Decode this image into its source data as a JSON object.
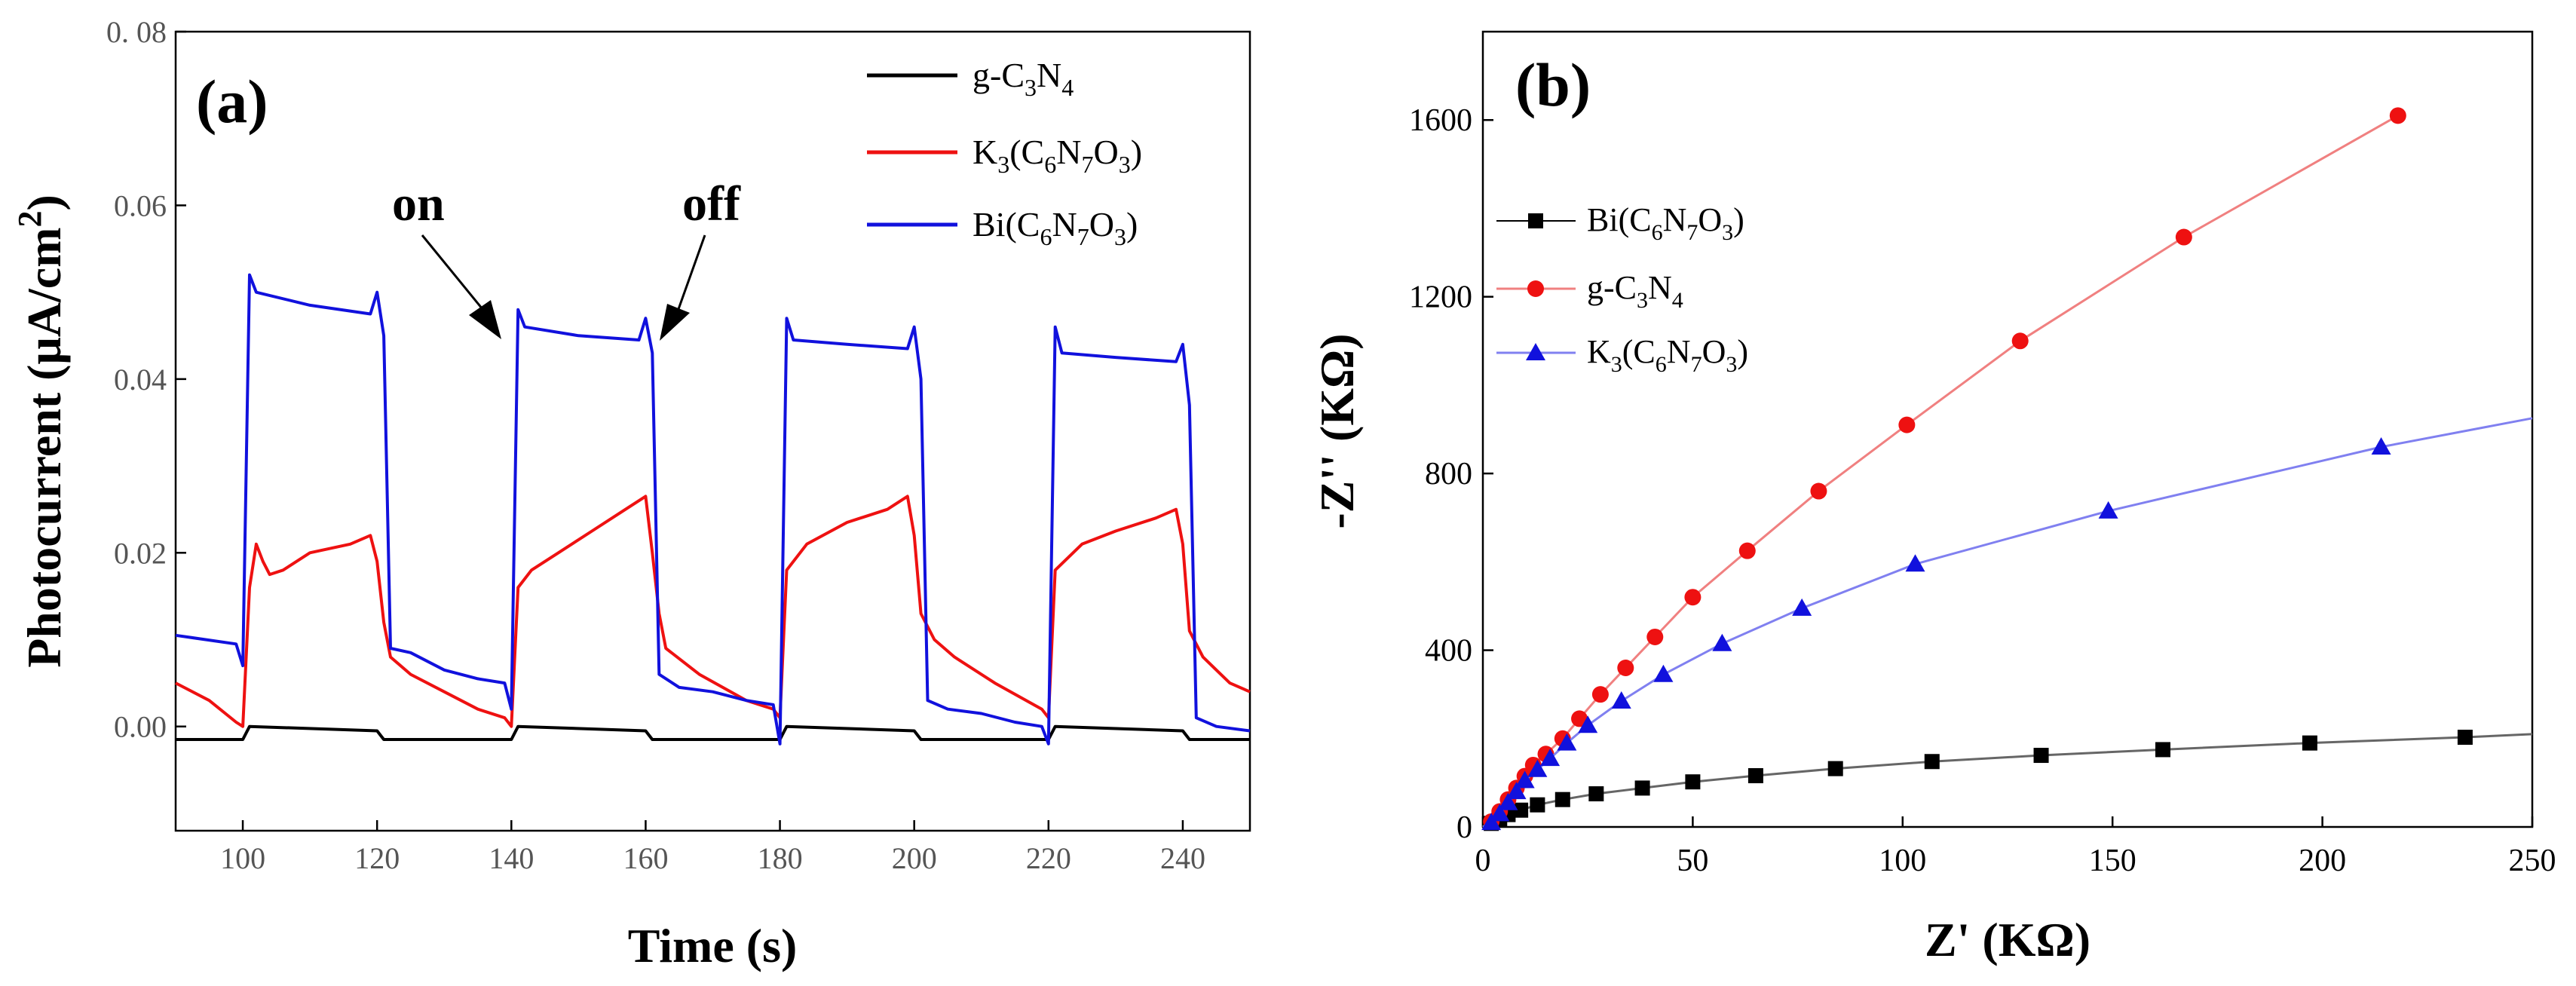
{
  "chart_data": [
    {
      "type": "line",
      "panel_label": "(a)",
      "xlabel": "Time (s)",
      "ylabel": "Photocurrent (μA/cm²)",
      "ylabel_main": "Photocurrent (μA/cm",
      "ylabel_sup": "2",
      "ylabel_end": ")",
      "xlim": [
        90,
        250
      ],
      "ylim": [
        -0.012,
        0.08
      ],
      "xticks": [
        100,
        120,
        140,
        160,
        180,
        200,
        220,
        240
      ],
      "xtick_labels": [
        "100",
        "120",
        "140",
        "160",
        "180",
        "200",
        "220",
        "240"
      ],
      "yticks": [
        0.0,
        0.02,
        0.04,
        0.06,
        0.08
      ],
      "ytick_labels": [
        "0.00",
        "0.02",
        "0.04",
        "0.06",
        "0. 08"
      ],
      "legend_position": "top-right",
      "annotations": [
        {
          "text": "on",
          "x": 140,
          "y": 0.0458
        },
        {
          "text": "off",
          "x": 160,
          "y": 0.0458
        }
      ],
      "series": [
        {
          "name": "g-C3N4",
          "label_parts": [
            "g-C",
            "3",
            "N",
            "4"
          ],
          "color": "#000000",
          "points": [
            [
              90,
              -0.0015
            ],
            [
              100,
              -0.0015
            ],
            [
              101,
              0.0
            ],
            [
              120,
              -0.0005
            ],
            [
              121,
              -0.0015
            ],
            [
              140,
              -0.0015
            ],
            [
              141,
              0.0
            ],
            [
              160,
              -0.0005
            ],
            [
              161,
              -0.0015
            ],
            [
              180,
              -0.0015
            ],
            [
              181,
              0.0
            ],
            [
              200,
              -0.0005
            ],
            [
              201,
              -0.0015
            ],
            [
              220,
              -0.0015
            ],
            [
              221,
              0.0
            ],
            [
              240,
              -0.0005
            ],
            [
              241,
              -0.0015
            ],
            [
              250,
              -0.0015
            ]
          ]
        },
        {
          "name": "K3(C6N7O3)",
          "label_parts": [
            "K",
            "3",
            "(C",
            "6",
            "N",
            "7",
            "O",
            "3",
            ")"
          ],
          "color": "#ee1111",
          "points": [
            [
              90,
              0.005
            ],
            [
              95,
              0.003
            ],
            [
              99,
              0.0005
            ],
            [
              100,
              0.0
            ],
            [
              101,
              0.016
            ],
            [
              102,
              0.021
            ],
            [
              103,
              0.019
            ],
            [
              104,
              0.0175
            ],
            [
              106,
              0.018
            ],
            [
              110,
              0.02
            ],
            [
              116,
              0.021
            ],
            [
              119,
              0.022
            ],
            [
              120,
              0.019
            ],
            [
              121,
              0.012
            ],
            [
              122,
              0.008
            ],
            [
              125,
              0.006
            ],
            [
              130,
              0.004
            ],
            [
              135,
              0.002
            ],
            [
              139,
              0.001
            ],
            [
              140,
              0.0
            ],
            [
              141,
              0.016
            ],
            [
              143,
              0.018
            ],
            [
              147,
              0.02
            ],
            [
              152,
              0.0225
            ],
            [
              157,
              0.025
            ],
            [
              160,
              0.0265
            ],
            [
              161,
              0.02
            ],
            [
              162,
              0.013
            ],
            [
              163,
              0.009
            ],
            [
              168,
              0.006
            ],
            [
              175,
              0.003
            ],
            [
              179,
              0.002
            ],
            [
              180,
              0.001
            ],
            [
              181,
              0.018
            ],
            [
              184,
              0.021
            ],
            [
              190,
              0.0235
            ],
            [
              196,
              0.025
            ],
            [
              199,
              0.0265
            ],
            [
              200,
              0.022
            ],
            [
              201,
              0.013
            ],
            [
              203,
              0.01
            ],
            [
              206,
              0.008
            ],
            [
              212,
              0.005
            ],
            [
              219,
              0.002
            ],
            [
              220,
              0.001
            ],
            [
              221,
              0.018
            ],
            [
              225,
              0.021
            ],
            [
              230,
              0.0225
            ],
            [
              236,
              0.024
            ],
            [
              239,
              0.025
            ],
            [
              240,
              0.021
            ],
            [
              241,
              0.011
            ],
            [
              243,
              0.008
            ],
            [
              247,
              0.005
            ],
            [
              250,
              0.004
            ]
          ]
        },
        {
          "name": "Bi(C6N7O3)",
          "label_parts": [
            "Bi(C",
            "6",
            "N",
            "7",
            "O",
            "3",
            ")"
          ],
          "color": "#1111dd",
          "points": [
            [
              90,
              0.0105
            ],
            [
              99,
              0.0095
            ],
            [
              100,
              0.007
            ],
            [
              101,
              0.052
            ],
            [
              102,
              0.05
            ],
            [
              110,
              0.0485
            ],
            [
              119,
              0.0475
            ],
            [
              120,
              0.05
            ],
            [
              121,
              0.045
            ],
            [
              122,
              0.009
            ],
            [
              125,
              0.0085
            ],
            [
              130,
              0.0065
            ],
            [
              135,
              0.0055
            ],
            [
              139,
              0.005
            ],
            [
              140,
              0.002
            ],
            [
              141,
              0.048
            ],
            [
              142,
              0.046
            ],
            [
              150,
              0.045
            ],
            [
              159,
              0.0445
            ],
            [
              160,
              0.047
            ],
            [
              161,
              0.043
            ],
            [
              162,
              0.006
            ],
            [
              165,
              0.0045
            ],
            [
              170,
              0.004
            ],
            [
              175,
              0.003
            ],
            [
              179,
              0.0025
            ],
            [
              180,
              -0.002
            ],
            [
              181,
              0.047
            ],
            [
              182,
              0.0445
            ],
            [
              190,
              0.044
            ],
            [
              199,
              0.0435
            ],
            [
              200,
              0.046
            ],
            [
              201,
              0.04
            ],
            [
              202,
              0.003
            ],
            [
              205,
              0.002
            ],
            [
              210,
              0.0015
            ],
            [
              215,
              0.0005
            ],
            [
              219,
              0.0
            ],
            [
              220,
              -0.002
            ],
            [
              221,
              0.046
            ],
            [
              222,
              0.043
            ],
            [
              230,
              0.0425
            ],
            [
              239,
              0.042
            ],
            [
              240,
              0.044
            ],
            [
              241,
              0.037
            ],
            [
              242,
              0.001
            ],
            [
              245,
              0.0
            ],
            [
              250,
              -0.0005
            ]
          ]
        }
      ]
    },
    {
      "type": "scatter",
      "panel_label": "(b)",
      "xlabel": "Z' (KΩ)",
      "ylabel": "-Z'' (KΩ)",
      "xlim": [
        0,
        250
      ],
      "ylim": [
        0,
        1800
      ],
      "xticks": [
        0,
        50,
        100,
        150,
        200,
        250
      ],
      "xtick_labels": [
        "0",
        "50",
        "100",
        "150",
        "200",
        "250"
      ],
      "yticks": [
        0,
        400,
        800,
        1200,
        1600
      ],
      "ytick_labels": [
        "0",
        "400",
        "800",
        "1200",
        "1600"
      ],
      "legend_position": "upper-left",
      "series": [
        {
          "name": "Bi(C6N7O3)",
          "label_parts": [
            "Bi(C",
            "6",
            "N",
            "7",
            "O",
            "3",
            ")"
          ],
          "color": "#000000",
          "marker": "square",
          "points": [
            [
              2,
              8
            ],
            [
              4,
              18
            ],
            [
              6,
              28
            ],
            [
              9,
              38
            ],
            [
              13,
              50
            ],
            [
              19,
              62
            ],
            [
              27,
              75
            ],
            [
              38,
              88
            ],
            [
              50,
              102
            ],
            [
              65,
              116
            ],
            [
              84,
              132
            ],
            [
              107,
              148
            ],
            [
              133,
              162
            ],
            [
              162,
              175
            ],
            [
              197,
              190
            ],
            [
              234,
              203
            ]
          ],
          "line_end": [
            250,
            210
          ]
        },
        {
          "name": "g-C3N4",
          "label_parts": [
            "g-C",
            "3",
            "N",
            "4"
          ],
          "color": "#ee1111",
          "marker": "circle",
          "points": [
            [
              2,
              12
            ],
            [
              4,
              35
            ],
            [
              6,
              62
            ],
            [
              8,
              88
            ],
            [
              10,
              115
            ],
            [
              12,
              140
            ],
            [
              15,
              165
            ],
            [
              19,
              200
            ],
            [
              23,
              245
            ],
            [
              28,
              300
            ],
            [
              34,
              360
            ],
            [
              41,
              430
            ],
            [
              50,
              520
            ],
            [
              63,
              625
            ],
            [
              80,
              760
            ],
            [
              101,
              910
            ],
            [
              128,
              1100
            ],
            [
              167,
              1335
            ],
            [
              218,
              1610
            ]
          ]
        },
        {
          "name": "K3(C6N7O3)",
          "label_parts": [
            "K",
            "3",
            "(C",
            "6",
            "N",
            "7",
            "O",
            "3",
            ")"
          ],
          "color": "#1111dd",
          "marker": "triangle",
          "points": [
            [
              2,
              10
            ],
            [
              4,
              30
            ],
            [
              6,
              55
            ],
            [
              8,
              80
            ],
            [
              10,
              105
            ],
            [
              13,
              130
            ],
            [
              16,
              155
            ],
            [
              20,
              190
            ],
            [
              25,
              230
            ],
            [
              33,
              285
            ],
            [
              43,
              345
            ],
            [
              57,
              415
            ],
            [
              76,
              495
            ],
            [
              103,
              595
            ],
            [
              149,
              715
            ],
            [
              214,
              860
            ]
          ],
          "line_end": [
            250,
            925
          ]
        }
      ]
    }
  ]
}
